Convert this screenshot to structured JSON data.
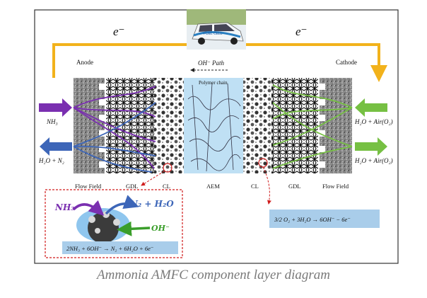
{
  "labels": {
    "electron_left": "e⁻",
    "electron_right": "e⁻",
    "anode": "Anode",
    "cathode": "Cathode",
    "oh_path": "OH⁻ Path",
    "polymer_chain": "Polymer chain",
    "nh3_in": "NH₃",
    "h2o_n2_out": "H₂O + N₂",
    "h2o_air_in": "H₂O + Air(O₂)",
    "h2o_air_out": "H₂O + Air(O₂)",
    "bottom": [
      "Flow Field",
      "GDL",
      "CL",
      "AEM",
      "CL",
      "GDL",
      "Flow Field"
    ],
    "inset_nh3": "NH₃",
    "inset_n2h2o": "N₂ + H₂O",
    "inset_oh": "OH⁻",
    "anode_reaction": "2NH₃ + 6OH⁻ → N₂ + 6H₂O + 6e⁻",
    "cathode_reaction": "3/2 O₂ + 3H₂O → 6OH⁻ − 6e⁻",
    "car_text": "FUEL CELL"
  },
  "caption": "Ammonia AMFC component layer diagram",
  "colors": {
    "electron_path": "#f2b21b",
    "nh3_arrow": "#7a2fb0",
    "h2o_n2_arrow": "#3d66b8",
    "air_arrow": "#76c043",
    "aem": "#bfe0f4",
    "reaction_box": "#a9cdea"
  }
}
